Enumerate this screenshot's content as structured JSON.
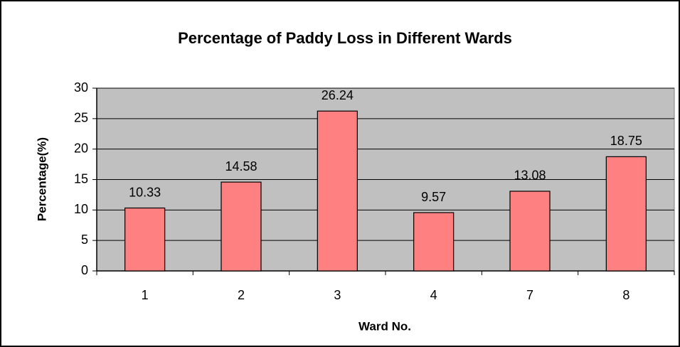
{
  "chart_data": {
    "type": "bar",
    "title": "Percentage of Paddy Loss in Different Wards",
    "x_label": "Ward No.",
    "y_label": "Percentage(%)",
    "categories": [
      "1",
      "2",
      "3",
      "4",
      "7",
      "8"
    ],
    "values": [
      10.33,
      14.58,
      26.24,
      9.57,
      13.08,
      18.75
    ],
    "color": "#ff8080",
    "ylim": [
      0,
      30
    ],
    "yticks": [
      0,
      5,
      10,
      15,
      20,
      25,
      30
    ],
    "grid": true
  }
}
